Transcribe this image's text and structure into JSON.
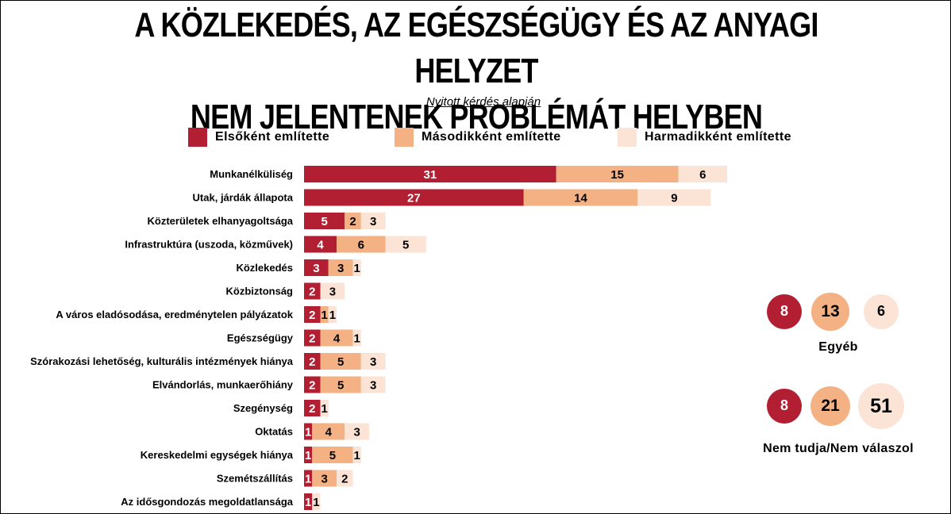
{
  "title_line1": "A KÖZLEKEDÉS, AZ EGÉSZSÉGÜGY ÉS AZ ANYAGI HELYZET",
  "title_line2": "NEM JELENTENEK PROBLÉMÁT HELYBEN",
  "subtitle": "Nyitott kérdés alapján",
  "legend": [
    {
      "label": "Elsőként említette",
      "color": "#b21f33"
    },
    {
      "label": "Másodikként említette",
      "color": "#f3b184"
    },
    {
      "label": "Harmadikként említette",
      "color": "#fbe3d5"
    }
  ],
  "chart_data": {
    "type": "bar",
    "orientation": "horizontal",
    "stacked": true,
    "categories": [
      "Munkanélküliség",
      "Utak, járdák állapota",
      "Közterületek elhanyagoltsága",
      "Infrastruktúra (uszoda, közművek)",
      "Közlekedés",
      "Közbiztonság",
      "A város eladósodása, eredménytelen pályázatok",
      "Egészségügy",
      "Szórakozási lehetőség, kulturális intézmények hiánya",
      "Elvándorlás, munkaerőhiány",
      "Szegénység",
      "Oktatás",
      "Kereskedelmi egységek hiánya",
      "Szemétszállítás",
      "Az idősgondozás megoldatlansága"
    ],
    "series": [
      {
        "name": "Elsőként említette",
        "color": "#b21f33",
        "values": [
          31,
          27,
          5,
          4,
          3,
          2,
          2,
          2,
          2,
          2,
          2,
          1,
          1,
          1,
          1
        ]
      },
      {
        "name": "Másodikként említette",
        "color": "#f3b184",
        "values": [
          15,
          14,
          2,
          6,
          3,
          null,
          1,
          4,
          5,
          5,
          null,
          4,
          5,
          3,
          null
        ]
      },
      {
        "name": "Harmadikként említette",
        "color": "#fbe3d5",
        "values": [
          6,
          9,
          3,
          5,
          1,
          3,
          1,
          1,
          3,
          3,
          1,
          3,
          1,
          2,
          1
        ]
      }
    ],
    "extra_groups": [
      {
        "label": "Egyéb",
        "values": [
          8,
          13,
          6
        ]
      },
      {
        "label": "Nem tudja/Nem válaszol",
        "values": [
          8,
          21,
          51
        ]
      }
    ]
  }
}
